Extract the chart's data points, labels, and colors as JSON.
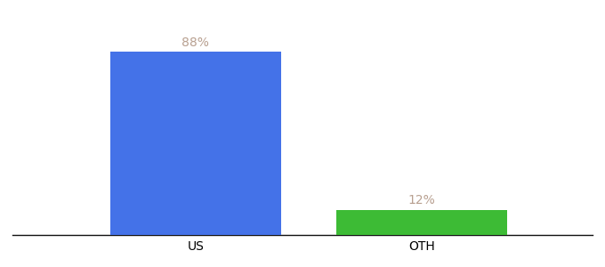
{
  "categories": [
    "US",
    "OTH"
  ],
  "values": [
    88,
    12
  ],
  "bar_colors": [
    "#4472e8",
    "#3dbb35"
  ],
  "label_color": "#b8a090",
  "background_color": "#ffffff",
  "bar_width": 0.28,
  "ylim": [
    0,
    100
  ],
  "label_fontsize": 10,
  "tick_fontsize": 10,
  "annotations": [
    "88%",
    "12%"
  ],
  "x_positions": [
    0.35,
    0.72
  ]
}
